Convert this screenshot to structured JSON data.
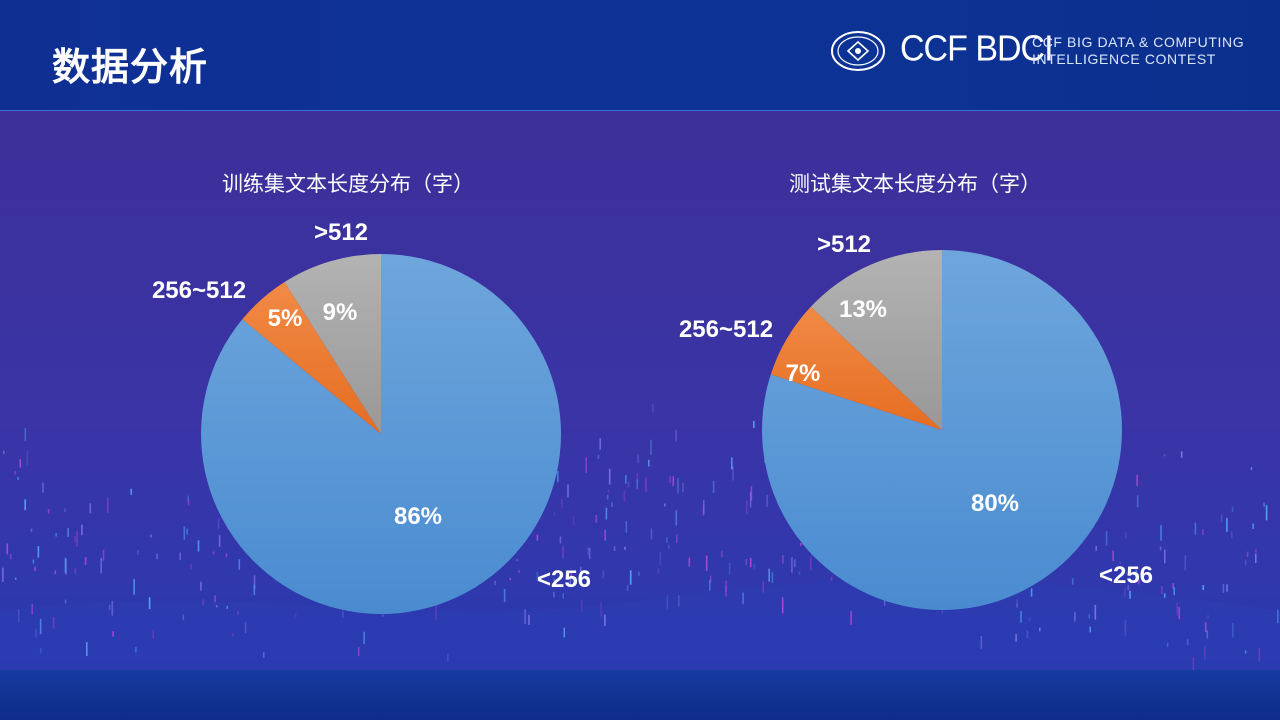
{
  "header": {
    "title": "数据分析",
    "logo_text": "CCF BDCI",
    "brand_line1": "CCF BIG DATA & COMPUTING",
    "brand_line2": "INTELLIGENCE CONTEST"
  },
  "colors": {
    "slice_lt256": "#5b9bd5",
    "slice_256_512": "#ed7d31",
    "slice_gt512": "#a5a5a5"
  },
  "chart_data": [
    {
      "type": "pie",
      "title": "训练集文本长度分布（字）",
      "categories": [
        "<256",
        "256~512",
        ">512"
      ],
      "values": [
        86,
        5,
        9
      ],
      "value_labels": [
        "86%",
        "5%",
        "9%"
      ]
    },
    {
      "type": "pie",
      "title": "测试集文本长度分布（字）",
      "categories": [
        "<256",
        "256~512",
        ">512"
      ],
      "values": [
        80,
        7,
        13
      ],
      "value_labels": [
        "80%",
        "7%",
        "13%"
      ]
    }
  ]
}
